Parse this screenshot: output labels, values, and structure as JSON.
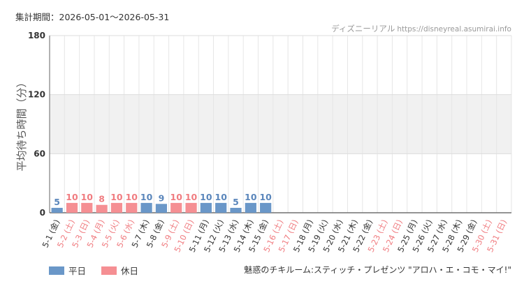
{
  "period": "集計期間：2026-05-01〜2026-05-31",
  "source": {
    "site": "ディズニーリアル",
    "url": "https://disneyreal.asumirai.info"
  },
  "footer_title": "魅惑のチキルーム:スティッチ・プレゼンツ \"アロハ・エ・コモ・マイ!\"",
  "legend": [
    {
      "label": "平日",
      "color": "#6a97c8"
    },
    {
      "label": "休日",
      "color": "#f58f93"
    }
  ],
  "colors": {
    "weekday_bar": "#6a97c8",
    "holiday_bar": "#f58f93",
    "weekday_text": "#5a86bb",
    "holiday_text": "#f07c80",
    "band": "#f1f1f1"
  },
  "chart_data": {
    "type": "bar",
    "ylabel": "平均待ち時間（分）",
    "ylim": [
      0,
      180
    ],
    "yticks": [
      0,
      60,
      120,
      180
    ],
    "shaded_band": [
      60,
      120
    ],
    "categories": [
      "5-1 (金)",
      "5-2 (土)",
      "5-3 (日)",
      "5-4 (月)",
      "5-5 (火)",
      "5-6 (水)",
      "5-7 (木)",
      "5-8 (金)",
      "5-9 (土)",
      "5-10 (日)",
      "5-11 (月)",
      "5-12 (火)",
      "5-13 (水)",
      "5-14 (木)",
      "5-15 (金)",
      "5-16 (土)",
      "5-17 (日)",
      "5-18 (月)",
      "5-19 (火)",
      "5-20 (水)",
      "5-21 (木)",
      "5-22 (金)",
      "5-23 (土)",
      "5-24 (日)",
      "5-25 (月)",
      "5-26 (火)",
      "5-27 (水)",
      "5-28 (木)",
      "5-29 (金)",
      "5-30 (土)",
      "5-31 (日)"
    ],
    "day_type": [
      "weekday",
      "holiday",
      "holiday",
      "holiday",
      "holiday",
      "holiday",
      "weekday",
      "weekday",
      "holiday",
      "holiday",
      "weekday",
      "weekday",
      "weekday",
      "weekday",
      "weekday",
      "holiday",
      "holiday",
      "weekday",
      "weekday",
      "weekday",
      "weekday",
      "weekday",
      "holiday",
      "holiday",
      "weekday",
      "weekday",
      "weekday",
      "weekday",
      "weekday",
      "holiday",
      "holiday"
    ],
    "values": [
      5,
      10,
      10,
      8,
      10,
      10,
      10,
      9,
      10,
      10,
      10,
      10,
      5,
      10,
      10,
      null,
      null,
      null,
      null,
      null,
      null,
      null,
      null,
      null,
      null,
      null,
      null,
      null,
      null,
      null,
      null
    ]
  }
}
